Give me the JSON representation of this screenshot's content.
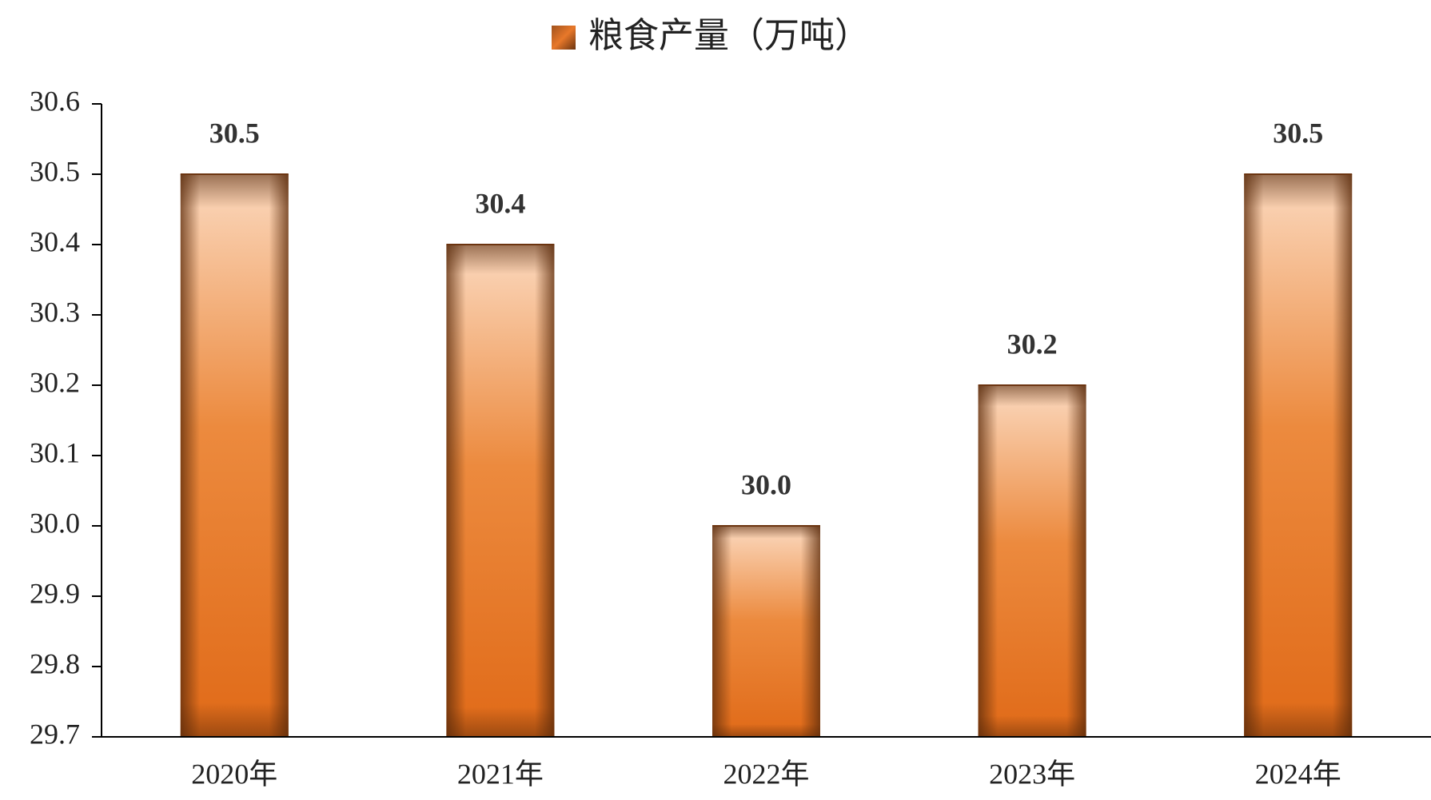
{
  "chart_data": {
    "type": "bar",
    "categories": [
      "2020年",
      "2021年",
      "2022年",
      "2023年",
      "2024年"
    ],
    "series": [
      {
        "name": "粮食产量（万吨）",
        "color": "#e8782a",
        "values": [
          30.5,
          30.4,
          30.0,
          30.2,
          30.5
        ],
        "value_labels": [
          "30.5",
          "30.4",
          "30.0",
          "30.2",
          "30.5"
        ]
      }
    ],
    "ylim": [
      29.7,
      30.6
    ],
    "yticks": [
      {
        "value": 29.7,
        "label": "29.7"
      },
      {
        "value": 29.8,
        "label": "29.8"
      },
      {
        "value": 29.9,
        "label": "29.9"
      },
      {
        "value": 30.0,
        "label": "30.0"
      },
      {
        "value": 30.1,
        "label": "30.1"
      },
      {
        "value": 30.2,
        "label": "30.2"
      },
      {
        "value": 30.3,
        "label": "30.3"
      },
      {
        "value": 30.4,
        "label": "30.4"
      },
      {
        "value": 30.5,
        "label": "30.5"
      },
      {
        "value": 30.6,
        "label": "30.6"
      }
    ],
    "legend": "top",
    "grid": false
  }
}
